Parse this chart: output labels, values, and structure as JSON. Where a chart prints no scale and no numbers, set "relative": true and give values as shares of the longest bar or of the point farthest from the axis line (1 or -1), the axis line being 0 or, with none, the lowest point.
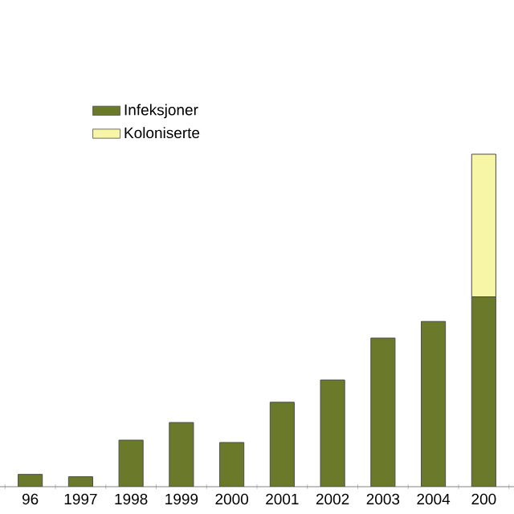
{
  "chart_data": {
    "type": "bar",
    "stacked": true,
    "relative": true,
    "legend": "top left",
    "categories": [
      "96",
      "1997",
      "1998",
      "1999",
      "2000",
      "2001",
      "2002",
      "2003",
      "2004",
      "200"
    ],
    "series": [
      {
        "name": "Infeksjoner",
        "color": "#6b7a2a",
        "values": [
          0.037,
          0.03,
          0.14,
          0.193,
          0.133,
          0.254,
          0.321,
          0.447,
          0.497,
          0.571
        ]
      },
      {
        "name": "Koloniserte",
        "color": "#f7f5a6",
        "values": [
          null,
          null,
          null,
          null,
          null,
          null,
          null,
          null,
          null,
          0.429
        ]
      }
    ]
  }
}
